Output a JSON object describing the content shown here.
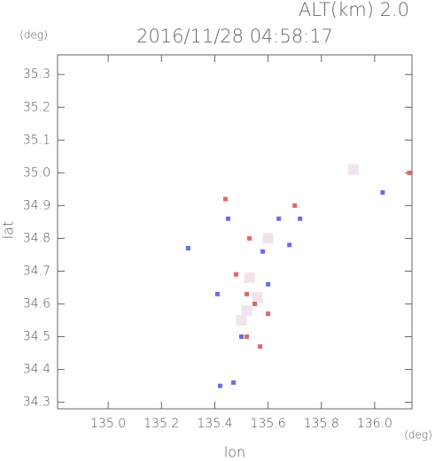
{
  "chart_data": {
    "type": "scatter",
    "title": "2016/11/28 04:58:17",
    "subtitle": "ALT(km) 2.0",
    "x_label": "lon",
    "y_label": "lat",
    "x_unit": "(deg)",
    "y_unit": "(deg)",
    "xlim": [
      134.81,
      136.14
    ],
    "ylim": [
      34.28,
      35.36
    ],
    "xticks": [
      {
        "value": 135,
        "label": "135.0"
      },
      135.2,
      135.4,
      135.6,
      135.8,
      {
        "value": 136,
        "label": "136.0"
      }
    ],
    "yticks": [
      34.3,
      34.4,
      34.5,
      34.6,
      34.7,
      34.8,
      34.9,
      {
        "value": 35,
        "label": "35.0"
      },
      35.1,
      35.2,
      35.3
    ],
    "series": [
      {
        "color": "#f2e4ee",
        "x": [
          135.92,
          135.52,
          135.6,
          135.53,
          135.56,
          135.5
        ],
        "values": [
          35.01,
          34.58,
          34.8,
          34.68,
          34.62,
          34.55
        ]
      },
      {
        "color": "#e06868",
        "x": [
          135.44,
          135.53,
          135.48,
          135.55,
          135.6,
          135.52,
          135.57,
          135.52,
          135.7,
          136.13
        ],
        "values": [
          34.92,
          34.8,
          34.69,
          34.6,
          34.57,
          34.63,
          34.47,
          34.5,
          34.9,
          35.0
        ]
      },
      {
        "color": "#6c6ce8",
        "x": [
          135.3,
          135.41,
          135.45,
          135.64,
          135.72,
          135.68,
          135.5,
          135.6,
          135.42,
          135.47,
          136.03,
          135.58
        ],
        "values": [
          34.77,
          34.63,
          34.86,
          34.86,
          34.86,
          34.78,
          34.5,
          34.66,
          34.35,
          34.36,
          34.94,
          34.76
        ]
      }
    ]
  }
}
